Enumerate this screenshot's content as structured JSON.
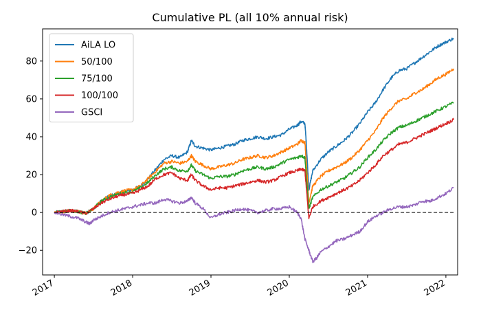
{
  "chart_data": {
    "type": "line",
    "title": "Cumulative PL (all 10% annual risk)",
    "xlabel": "",
    "ylabel": "",
    "x_ticks": [
      "2017",
      "2018",
      "2019",
      "2020",
      "2021",
      "2022"
    ],
    "y_ticks": [
      -20,
      0,
      20,
      40,
      60,
      80
    ],
    "y_tick_labels": [
      "−20",
      "0",
      "20",
      "40",
      "60",
      "80"
    ],
    "xlim": [
      2016.85,
      2022.15
    ],
    "ylim": [
      -33,
      97
    ],
    "legend_position": "top-left",
    "grid": false,
    "reference_line": {
      "y": 0,
      "style": "dashed",
      "color": "#000000"
    },
    "series": [
      {
        "name": "AiLA LO",
        "color": "#1f77b4",
        "points": [
          [
            2017.0,
            0
          ],
          [
            2017.1,
            0.5
          ],
          [
            2017.2,
            1
          ],
          [
            2017.3,
            0.5
          ],
          [
            2017.4,
            -0.5
          ],
          [
            2017.5,
            2
          ],
          [
            2017.6,
            6
          ],
          [
            2017.7,
            8.5
          ],
          [
            2017.8,
            10
          ],
          [
            2017.9,
            11
          ],
          [
            2018.0,
            12
          ],
          [
            2018.1,
            14
          ],
          [
            2018.2,
            18
          ],
          [
            2018.3,
            23
          ],
          [
            2018.4,
            28
          ],
          [
            2018.5,
            30
          ],
          [
            2018.6,
            29
          ],
          [
            2018.7,
            32
          ],
          [
            2018.75,
            38
          ],
          [
            2018.8,
            35
          ],
          [
            2018.9,
            34
          ],
          [
            2019.0,
            33
          ],
          [
            2019.1,
            34
          ],
          [
            2019.2,
            35
          ],
          [
            2019.3,
            36
          ],
          [
            2019.4,
            38
          ],
          [
            2019.5,
            39
          ],
          [
            2019.6,
            40
          ],
          [
            2019.7,
            39
          ],
          [
            2019.8,
            40
          ],
          [
            2019.9,
            41
          ],
          [
            2020.0,
            44
          ],
          [
            2020.1,
            46
          ],
          [
            2020.15,
            48
          ],
          [
            2020.2,
            47
          ],
          [
            2020.22,
            35
          ],
          [
            2020.25,
            12
          ],
          [
            2020.3,
            22
          ],
          [
            2020.4,
            28
          ],
          [
            2020.5,
            32
          ],
          [
            2020.6,
            35
          ],
          [
            2020.7,
            38
          ],
          [
            2020.8,
            42
          ],
          [
            2020.9,
            47
          ],
          [
            2021.0,
            53
          ],
          [
            2021.1,
            58
          ],
          [
            2021.2,
            65
          ],
          [
            2021.3,
            71
          ],
          [
            2021.4,
            75
          ],
          [
            2021.5,
            76
          ],
          [
            2021.6,
            79
          ],
          [
            2021.7,
            82
          ],
          [
            2021.8,
            85
          ],
          [
            2021.9,
            88
          ],
          [
            2022.0,
            90
          ],
          [
            2022.1,
            92
          ]
        ]
      },
      {
        "name": "50/100",
        "color": "#ff7f0e",
        "points": [
          [
            2017.0,
            0
          ],
          [
            2017.1,
            0.5
          ],
          [
            2017.2,
            1
          ],
          [
            2017.3,
            0.5
          ],
          [
            2017.4,
            -0.5
          ],
          [
            2017.5,
            2
          ],
          [
            2017.6,
            6
          ],
          [
            2017.7,
            9
          ],
          [
            2017.8,
            10.5
          ],
          [
            2017.9,
            11.5
          ],
          [
            2018.0,
            12
          ],
          [
            2018.1,
            14
          ],
          [
            2018.2,
            18
          ],
          [
            2018.3,
            22
          ],
          [
            2018.4,
            26
          ],
          [
            2018.5,
            27
          ],
          [
            2018.6,
            26
          ],
          [
            2018.7,
            27
          ],
          [
            2018.75,
            30
          ],
          [
            2018.8,
            27
          ],
          [
            2018.9,
            25
          ],
          [
            2019.0,
            23
          ],
          [
            2019.1,
            24
          ],
          [
            2019.2,
            25
          ],
          [
            2019.3,
            26
          ],
          [
            2019.4,
            28
          ],
          [
            2019.5,
            29
          ],
          [
            2019.6,
            30
          ],
          [
            2019.7,
            29
          ],
          [
            2019.8,
            30
          ],
          [
            2019.9,
            32
          ],
          [
            2020.0,
            34
          ],
          [
            2020.1,
            36
          ],
          [
            2020.15,
            38
          ],
          [
            2020.2,
            37
          ],
          [
            2020.22,
            25
          ],
          [
            2020.25,
            5
          ],
          [
            2020.3,
            14
          ],
          [
            2020.4,
            19
          ],
          [
            2020.5,
            22
          ],
          [
            2020.6,
            24
          ],
          [
            2020.7,
            26
          ],
          [
            2020.8,
            29
          ],
          [
            2020.9,
            33
          ],
          [
            2021.0,
            38
          ],
          [
            2021.1,
            43
          ],
          [
            2021.2,
            50
          ],
          [
            2021.3,
            55
          ],
          [
            2021.4,
            59
          ],
          [
            2021.5,
            60
          ],
          [
            2021.6,
            63
          ],
          [
            2021.7,
            65
          ],
          [
            2021.8,
            68
          ],
          [
            2021.9,
            71
          ],
          [
            2022.0,
            73
          ],
          [
            2022.1,
            76
          ]
        ]
      },
      {
        "name": "75/100",
        "color": "#2ca02c",
        "points": [
          [
            2017.0,
            0
          ],
          [
            2017.1,
            0.5
          ],
          [
            2017.2,
            1
          ],
          [
            2017.3,
            0.5
          ],
          [
            2017.4,
            -0.5
          ],
          [
            2017.5,
            2
          ],
          [
            2017.6,
            6
          ],
          [
            2017.7,
            8
          ],
          [
            2017.8,
            9.5
          ],
          [
            2017.9,
            10.5
          ],
          [
            2018.0,
            11
          ],
          [
            2018.1,
            13
          ],
          [
            2018.2,
            16
          ],
          [
            2018.3,
            20
          ],
          [
            2018.4,
            23
          ],
          [
            2018.5,
            24
          ],
          [
            2018.6,
            22
          ],
          [
            2018.7,
            22
          ],
          [
            2018.75,
            25
          ],
          [
            2018.8,
            22
          ],
          [
            2018.9,
            20
          ],
          [
            2019.0,
            18
          ],
          [
            2019.1,
            19
          ],
          [
            2019.2,
            19
          ],
          [
            2019.3,
            20
          ],
          [
            2019.4,
            22
          ],
          [
            2019.5,
            23
          ],
          [
            2019.6,
            24
          ],
          [
            2019.7,
            23
          ],
          [
            2019.8,
            24
          ],
          [
            2019.9,
            26
          ],
          [
            2020.0,
            28
          ],
          [
            2020.1,
            29
          ],
          [
            2020.15,
            30
          ],
          [
            2020.2,
            29
          ],
          [
            2020.22,
            18
          ],
          [
            2020.25,
            2
          ],
          [
            2020.3,
            8
          ],
          [
            2020.4,
            12
          ],
          [
            2020.5,
            14
          ],
          [
            2020.6,
            16
          ],
          [
            2020.7,
            18
          ],
          [
            2020.8,
            21
          ],
          [
            2020.9,
            24
          ],
          [
            2021.0,
            29
          ],
          [
            2021.1,
            33
          ],
          [
            2021.2,
            38
          ],
          [
            2021.3,
            42
          ],
          [
            2021.4,
            45
          ],
          [
            2021.5,
            46
          ],
          [
            2021.6,
            48
          ],
          [
            2021.7,
            50
          ],
          [
            2021.8,
            52
          ],
          [
            2021.9,
            54
          ],
          [
            2022.0,
            56
          ],
          [
            2022.1,
            58
          ]
        ]
      },
      {
        "name": "100/100",
        "color": "#d62728",
        "points": [
          [
            2017.0,
            0
          ],
          [
            2017.1,
            0.5
          ],
          [
            2017.2,
            1
          ],
          [
            2017.3,
            0.5
          ],
          [
            2017.4,
            -0.5
          ],
          [
            2017.5,
            2
          ],
          [
            2017.6,
            5
          ],
          [
            2017.7,
            7
          ],
          [
            2017.8,
            8.5
          ],
          [
            2017.9,
            9.5
          ],
          [
            2018.0,
            10
          ],
          [
            2018.1,
            12
          ],
          [
            2018.2,
            14
          ],
          [
            2018.3,
            18
          ],
          [
            2018.4,
            20
          ],
          [
            2018.5,
            21
          ],
          [
            2018.6,
            18
          ],
          [
            2018.7,
            17
          ],
          [
            2018.75,
            20
          ],
          [
            2018.8,
            17
          ],
          [
            2018.9,
            14
          ],
          [
            2019.0,
            12
          ],
          [
            2019.1,
            13
          ],
          [
            2019.2,
            13
          ],
          [
            2019.3,
            14
          ],
          [
            2019.4,
            15
          ],
          [
            2019.5,
            16
          ],
          [
            2019.6,
            17
          ],
          [
            2019.7,
            16
          ],
          [
            2019.8,
            17
          ],
          [
            2019.9,
            19
          ],
          [
            2020.0,
            21
          ],
          [
            2020.1,
            22
          ],
          [
            2020.15,
            23
          ],
          [
            2020.2,
            22
          ],
          [
            2020.22,
            12
          ],
          [
            2020.25,
            -3
          ],
          [
            2020.3,
            3
          ],
          [
            2020.4,
            6
          ],
          [
            2020.5,
            8
          ],
          [
            2020.6,
            10
          ],
          [
            2020.7,
            12
          ],
          [
            2020.8,
            14
          ],
          [
            2020.9,
            17
          ],
          [
            2021.0,
            21
          ],
          [
            2021.1,
            25
          ],
          [
            2021.2,
            30
          ],
          [
            2021.3,
            33
          ],
          [
            2021.4,
            36
          ],
          [
            2021.5,
            37
          ],
          [
            2021.6,
            39
          ],
          [
            2021.7,
            41
          ],
          [
            2021.8,
            43
          ],
          [
            2021.9,
            45
          ],
          [
            2022.0,
            47
          ],
          [
            2022.1,
            49
          ]
        ]
      },
      {
        "name": "GSCI",
        "color": "#9467bd",
        "points": [
          [
            2017.0,
            0
          ],
          [
            2017.1,
            -1
          ],
          [
            2017.2,
            -2
          ],
          [
            2017.3,
            -3
          ],
          [
            2017.4,
            -5
          ],
          [
            2017.45,
            -6
          ],
          [
            2017.5,
            -4
          ],
          [
            2017.6,
            -2
          ],
          [
            2017.7,
            0
          ],
          [
            2017.8,
            1
          ],
          [
            2017.9,
            2
          ],
          [
            2018.0,
            3
          ],
          [
            2018.1,
            4
          ],
          [
            2018.2,
            5
          ],
          [
            2018.3,
            5
          ],
          [
            2018.4,
            7
          ],
          [
            2018.5,
            6
          ],
          [
            2018.6,
            5
          ],
          [
            2018.7,
            6
          ],
          [
            2018.75,
            8
          ],
          [
            2018.8,
            5
          ],
          [
            2018.9,
            2
          ],
          [
            2019.0,
            -3
          ],
          [
            2019.1,
            -1
          ],
          [
            2019.2,
            0
          ],
          [
            2019.3,
            1
          ],
          [
            2019.4,
            2
          ],
          [
            2019.5,
            1
          ],
          [
            2019.6,
            0
          ],
          [
            2019.7,
            1
          ],
          [
            2019.8,
            2
          ],
          [
            2019.9,
            2
          ],
          [
            2020.0,
            3
          ],
          [
            2020.1,
            0
          ],
          [
            2020.15,
            -3
          ],
          [
            2020.2,
            -14
          ],
          [
            2020.25,
            -20
          ],
          [
            2020.3,
            -26
          ],
          [
            2020.35,
            -24
          ],
          [
            2020.4,
            -21
          ],
          [
            2020.5,
            -18
          ],
          [
            2020.6,
            -15
          ],
          [
            2020.7,
            -14
          ],
          [
            2020.8,
            -12
          ],
          [
            2020.9,
            -10
          ],
          [
            2021.0,
            -5
          ],
          [
            2021.1,
            -2
          ],
          [
            2021.2,
            0
          ],
          [
            2021.3,
            2
          ],
          [
            2021.4,
            3
          ],
          [
            2021.5,
            3
          ],
          [
            2021.6,
            4
          ],
          [
            2021.7,
            6
          ],
          [
            2021.8,
            6
          ],
          [
            2021.9,
            8
          ],
          [
            2022.0,
            10
          ],
          [
            2022.1,
            13
          ]
        ]
      }
    ]
  }
}
